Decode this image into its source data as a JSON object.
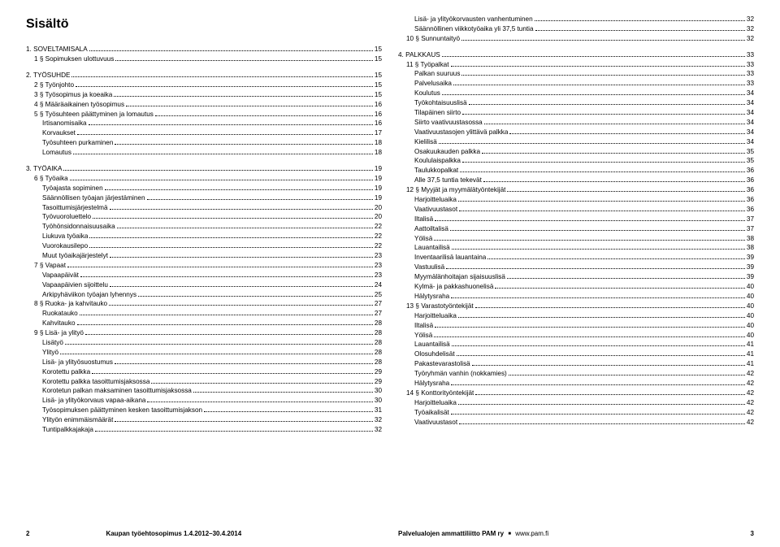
{
  "title": "Sisältö",
  "footer": {
    "left_page": "2",
    "right_page": "3",
    "book_title": "Kaupan työehtosopimus 1.4.2012–30.4.2014",
    "org": "Palvelualojen ammattiliitto PAM ry",
    "url_icon": "■",
    "url": "www.pam.fi"
  },
  "left": [
    {
      "t": "1. SOVELTAMISALA",
      "p": "15",
      "i": 0
    },
    {
      "t": "1 § Sopimuksen ulottuvuus",
      "p": "15",
      "i": 1,
      "gapAfter": true
    },
    {
      "t": "2. TYÖSUHDE",
      "p": "15",
      "i": 0
    },
    {
      "t": "2 § Työnjohto",
      "p": "15",
      "i": 1
    },
    {
      "t": "3 § Työsopimus ja koeaika",
      "p": "15",
      "i": 1
    },
    {
      "t": "4 § Määräaikainen työsopimus",
      "p": "16",
      "i": 1
    },
    {
      "t": "5 § Työsuhteen päättyminen ja lomautus",
      "p": "16",
      "i": 1
    },
    {
      "t": "Irtisanomisaika",
      "p": "16",
      "i": 2
    },
    {
      "t": "Korvaukset",
      "p": "17",
      "i": 2
    },
    {
      "t": "Työsuhteen purkaminen",
      "p": "18",
      "i": 2
    },
    {
      "t": "Lomautus",
      "p": "18",
      "i": 2,
      "gapAfter": true
    },
    {
      "t": "3. TYÖAIKA",
      "p": "19",
      "i": 0
    },
    {
      "t": "6 § Työaika",
      "p": "19",
      "i": 1
    },
    {
      "t": "Työajasta sopiminen",
      "p": "19",
      "i": 2
    },
    {
      "t": "Säännöllisen työajan järjestäminen",
      "p": "19",
      "i": 2
    },
    {
      "t": "Tasoittumisjärjestelmä",
      "p": "20",
      "i": 2
    },
    {
      "t": "Työvuoroluettelo",
      "p": "20",
      "i": 2
    },
    {
      "t": "Työhönsidonnaisuusaika",
      "p": "22",
      "i": 2
    },
    {
      "t": "Liukuva työaika",
      "p": "22",
      "i": 2
    },
    {
      "t": "Vuorokausilepo",
      "p": "22",
      "i": 2
    },
    {
      "t": "Muut työaikajärjestelyt",
      "p": "23",
      "i": 2
    },
    {
      "t": "7 § Vapaat",
      "p": "23",
      "i": 1
    },
    {
      "t": "Vapaapäivät",
      "p": "23",
      "i": 2
    },
    {
      "t": "Vapaapäivien sijoittelu",
      "p": "24",
      "i": 2
    },
    {
      "t": "Arkipyhäviikon työajan lyhennys",
      "p": "25",
      "i": 2
    },
    {
      "t": "8 § Ruoka- ja kahvitauko",
      "p": "27",
      "i": 1
    },
    {
      "t": "Ruokatauko",
      "p": "27",
      "i": 2
    },
    {
      "t": "Kahvitauko",
      "p": "28",
      "i": 2
    },
    {
      "t": "9 § Lisä- ja ylityö",
      "p": "28",
      "i": 1
    },
    {
      "t": "Lisätyö",
      "p": "28",
      "i": 2
    },
    {
      "t": "Ylityö",
      "p": "28",
      "i": 2
    },
    {
      "t": "Lisä- ja ylityösuostumus",
      "p": "28",
      "i": 2
    },
    {
      "t": "Korotettu palkka",
      "p": "29",
      "i": 2
    },
    {
      "t": "Korotettu palkka tasoittumisjaksossa",
      "p": "29",
      "i": 2
    },
    {
      "t": "Korotetun palkan maksaminen tasoittumisjaksossa",
      "p": "30",
      "i": 2
    },
    {
      "t": "Lisä- ja ylityökorvaus vapaa-aikana",
      "p": "30",
      "i": 2
    },
    {
      "t": "Työsopimuksen päättyminen kesken tasoittumisjakson",
      "p": "31",
      "i": 2
    },
    {
      "t": "Ylityön enimmäismäärät",
      "p": "32",
      "i": 2
    },
    {
      "t": "Tuntipalkkajakaja",
      "p": "32",
      "i": 2
    }
  ],
  "right": [
    {
      "t": "Lisä- ja ylityökorvausten vanhentuminen",
      "p": "32",
      "i": 2
    },
    {
      "t": "Säännöllinen viikkotyöaika yli 37,5 tuntia",
      "p": "32",
      "i": 2
    },
    {
      "t": "10 § Sunnuntaityö",
      "p": "32",
      "i": 1,
      "gapAfter": true
    },
    {
      "t": "4. PALKKAUS",
      "p": "33",
      "i": 0
    },
    {
      "t": "11 § Työpalkat",
      "p": "33",
      "i": 1
    },
    {
      "t": "Palkan suuruus",
      "p": "33",
      "i": 2
    },
    {
      "t": "Palvelusaika",
      "p": "33",
      "i": 2
    },
    {
      "t": "Koulutus",
      "p": "34",
      "i": 2
    },
    {
      "t": "Työkohtaisuuslisä",
      "p": "34",
      "i": 2
    },
    {
      "t": "Tilapäinen siirto",
      "p": "34",
      "i": 2
    },
    {
      "t": "Siirto vaativuustasossa",
      "p": "34",
      "i": 2
    },
    {
      "t": "Vaativuustasojen ylittävä palkka",
      "p": "34",
      "i": 2
    },
    {
      "t": "Kielilisä",
      "p": "34",
      "i": 2
    },
    {
      "t": "Osakuukauden palkka",
      "p": "35",
      "i": 2
    },
    {
      "t": "Koululaispalkka",
      "p": "35",
      "i": 2
    },
    {
      "t": "Taulukkopalkat",
      "p": "36",
      "i": 2
    },
    {
      "t": "Alle 37,5 tuntia tekevät",
      "p": "36",
      "i": 2
    },
    {
      "t": "12 § Myyjät ja myymälätyöntekijät",
      "p": "36",
      "i": 1
    },
    {
      "t": "Harjoitteluaika",
      "p": "36",
      "i": 2
    },
    {
      "t": "Vaativuustasot",
      "p": "36",
      "i": 2
    },
    {
      "t": "Iltalisä",
      "p": "37",
      "i": 2
    },
    {
      "t": "Aattoiltalisä",
      "p": "37",
      "i": 2
    },
    {
      "t": "Yölisä",
      "p": "38",
      "i": 2
    },
    {
      "t": "Lauantailisä",
      "p": "38",
      "i": 2
    },
    {
      "t": "Inventaarilisä lauantaina",
      "p": "39",
      "i": 2
    },
    {
      "t": "Vastuulisä",
      "p": "39",
      "i": 2
    },
    {
      "t": "Myymälänhoitajan sijaisuuslisä",
      "p": "39",
      "i": 2
    },
    {
      "t": "Kylmä- ja pakkashuonelisä",
      "p": "40",
      "i": 2
    },
    {
      "t": "Hälytysraha",
      "p": "40",
      "i": 2
    },
    {
      "t": "13 § Varastotyöntekijät",
      "p": "40",
      "i": 1
    },
    {
      "t": "Harjoitteluaika",
      "p": "40",
      "i": 2
    },
    {
      "t": "Iltalisä",
      "p": "40",
      "i": 2
    },
    {
      "t": "Yölisä",
      "p": "40",
      "i": 2
    },
    {
      "t": "Lauantailisä",
      "p": "41",
      "i": 2
    },
    {
      "t": "Olosuhdelisät",
      "p": "41",
      "i": 2
    },
    {
      "t": "Pakastevarastolisä",
      "p": "41",
      "i": 2
    },
    {
      "t": "Työryhmän vanhin (nokkamies)",
      "p": "42",
      "i": 2
    },
    {
      "t": "Hälytysraha",
      "p": "42",
      "i": 2
    },
    {
      "t": "14 § Konttorityöntekijät",
      "p": "42",
      "i": 1
    },
    {
      "t": "Harjoitteluaika",
      "p": "42",
      "i": 2
    },
    {
      "t": "Työaikalisät",
      "p": "42",
      "i": 2
    },
    {
      "t": "Vaativuustasot",
      "p": "42",
      "i": 2
    }
  ]
}
